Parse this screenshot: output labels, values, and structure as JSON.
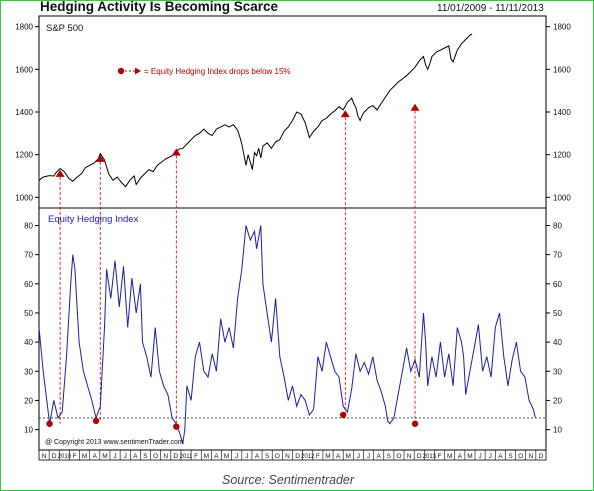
{
  "header": {
    "title": "Hedging Activity Is Becoming Scarce",
    "date_range": "11/01/2009 - 11/11/2013"
  },
  "footer": {
    "source": "Source: Sentimentrader"
  },
  "chart_data": [
    {
      "type": "line",
      "panel": "top",
      "label": "S&P 500",
      "ylim": [
        950,
        1850
      ],
      "yticks": [
        1000,
        1200,
        1400,
        1600,
        1800
      ],
      "grid": false,
      "legend": {
        "text": "= Equity Hedging Index drops below 15%",
        "placement": "top-left",
        "marker_color": "#b00000"
      },
      "line_color": "#000000",
      "series": [
        {
          "values": [
            [
              0,
              1080
            ],
            [
              2,
              1095
            ],
            [
              4,
              1100
            ],
            [
              5,
              1102
            ],
            [
              7,
              1100
            ],
            [
              8,
              1115
            ],
            [
              10,
              1135
            ],
            [
              12,
              1120
            ],
            [
              14,
              1090
            ],
            [
              16,
              1075
            ],
            [
              18,
              1095
            ],
            [
              20,
              1110
            ],
            [
              22,
              1140
            ],
            [
              24,
              1150
            ],
            [
              26,
              1160
            ],
            [
              28,
              1180
            ],
            [
              29,
              1205
            ],
            [
              31,
              1175
            ],
            [
              33,
              1110
            ],
            [
              35,
              1080
            ],
            [
              37,
              1095
            ],
            [
              39,
              1070
            ],
            [
              41,
              1050
            ],
            [
              43,
              1080
            ],
            [
              45,
              1100
            ],
            [
              46,
              1060
            ],
            [
              48,
              1090
            ],
            [
              50,
              1110
            ],
            [
              52,
              1130
            ],
            [
              54,
              1120
            ],
            [
              56,
              1150
            ],
            [
              58,
              1165
            ],
            [
              60,
              1180
            ],
            [
              62,
              1190
            ],
            [
              64,
              1200
            ],
            [
              66,
              1225
            ],
            [
              68,
              1230
            ],
            [
              70,
              1250
            ],
            [
              72,
              1270
            ],
            [
              74,
              1290
            ],
            [
              76,
              1300
            ],
            [
              78,
              1320
            ],
            [
              80,
              1300
            ],
            [
              82,
              1290
            ],
            [
              84,
              1320
            ],
            [
              86,
              1330
            ],
            [
              88,
              1340
            ],
            [
              90,
              1330
            ],
            [
              92,
              1340
            ],
            [
              94,
              1315
            ],
            [
              95,
              1285
            ],
            [
              96,
              1250
            ],
            [
              97,
              1200
            ],
            [
              98,
              1150
            ],
            [
              99,
              1200
            ],
            [
              100,
              1165
            ],
            [
              101,
              1130
            ],
            [
              102,
              1210
            ],
            [
              103,
              1195
            ],
            [
              104,
              1230
            ],
            [
              105,
              1185
            ],
            [
              106,
              1240
            ],
            [
              108,
              1255
            ],
            [
              110,
              1230
            ],
            [
              112,
              1260
            ],
            [
              114,
              1270
            ],
            [
              116,
              1310
            ],
            [
              118,
              1330
            ],
            [
              120,
              1360
            ],
            [
              122,
              1400
            ],
            [
              124,
              1390
            ],
            [
              125,
              1370
            ],
            [
              126,
              1350
            ],
            [
              127,
              1315
            ],
            [
              128,
              1280
            ],
            [
              130,
              1310
            ],
            [
              132,
              1330
            ],
            [
              134,
              1360
            ],
            [
              136,
              1370
            ],
            [
              138,
              1390
            ],
            [
              140,
              1405
            ],
            [
              142,
              1425
            ],
            [
              144,
              1410
            ],
            [
              146,
              1445
            ],
            [
              148,
              1465
            ],
            [
              149,
              1440
            ],
            [
              150,
              1420
            ],
            [
              151,
              1380
            ],
            [
              152,
              1360
            ],
            [
              153,
              1385
            ],
            [
              154,
              1400
            ],
            [
              156,
              1420
            ],
            [
              158,
              1430
            ],
            [
              160,
              1410
            ],
            [
              162,
              1440
            ],
            [
              164,
              1470
            ],
            [
              166,
              1500
            ],
            [
              168,
              1520
            ],
            [
              170,
              1540
            ],
            [
              172,
              1555
            ],
            [
              174,
              1570
            ],
            [
              176,
              1590
            ],
            [
              178,
              1610
            ],
            [
              180,
              1640
            ],
            [
              182,
              1660
            ],
            [
              183,
              1620
            ],
            [
              184,
              1600
            ],
            [
              185,
              1625
            ],
            [
              186,
              1660
            ],
            [
              188,
              1680
            ],
            [
              190,
              1690
            ],
            [
              192,
              1700
            ],
            [
              194,
              1710
            ],
            [
              195,
              1650
            ],
            [
              196,
              1635
            ],
            [
              198,
              1690
            ],
            [
              200,
              1720
            ],
            [
              202,
              1740
            ],
            [
              204,
              1760
            ],
            [
              205,
              1765
            ]
          ]
        }
      ],
      "markers": [
        {
          "x": 10,
          "value": 1110
        },
        {
          "x": 29,
          "value": 1180
        },
        {
          "x": 65,
          "value": 1210
        },
        {
          "x": 145,
          "value": 1390
        },
        {
          "x": 178,
          "value": 1420
        }
      ]
    },
    {
      "type": "line",
      "panel": "bottom",
      "label": "Equity Hedging Index",
      "ylim": [
        3,
        86
      ],
      "yticks": [
        10,
        20,
        30,
        40,
        50,
        60,
        70,
        80
      ],
      "grid": false,
      "reference_line": {
        "value": 14,
        "style": "dashed"
      },
      "line_color": "#1a1fa0",
      "series": [
        {
          "values": [
            [
              0,
              45
            ],
            [
              2,
              30
            ],
            [
              4,
              18
            ],
            [
              5,
              12
            ],
            [
              7,
              20
            ],
            [
              9,
              14
            ],
            [
              11,
              16
            ],
            [
              13,
              35
            ],
            [
              15,
              60
            ],
            [
              16,
              70
            ],
            [
              17,
              65
            ],
            [
              19,
              40
            ],
            [
              21,
              30
            ],
            [
              23,
              25
            ],
            [
              25,
              20
            ],
            [
              27,
              14
            ],
            [
              29,
              18
            ],
            [
              31,
              45
            ],
            [
              32,
              65
            ],
            [
              34,
              55
            ],
            [
              36,
              68
            ],
            [
              38,
              52
            ],
            [
              40,
              66
            ],
            [
              42,
              45
            ],
            [
              44,
              62
            ],
            [
              46,
              50
            ],
            [
              48,
              60
            ],
            [
              49,
              40
            ],
            [
              51,
              35
            ],
            [
              53,
              28
            ],
            [
              55,
              45
            ],
            [
              57,
              30
            ],
            [
              59,
              25
            ],
            [
              61,
              22
            ],
            [
              63,
              14
            ],
            [
              65,
              12
            ],
            [
              67,
              8
            ],
            [
              68,
              5
            ],
            [
              69,
              10
            ],
            [
              70,
              25
            ],
            [
              72,
              20
            ],
            [
              74,
              35
            ],
            [
              76,
              40
            ],
            [
              78,
              30
            ],
            [
              80,
              28
            ],
            [
              82,
              36
            ],
            [
              84,
              30
            ],
            [
              86,
              48
            ],
            [
              88,
              40
            ],
            [
              90,
              45
            ],
            [
              92,
              38
            ],
            [
              94,
              55
            ],
            [
              96,
              65
            ],
            [
              98,
              80
            ],
            [
              100,
              75
            ],
            [
              102,
              78
            ],
            [
              103,
              72
            ],
            [
              105,
              80
            ],
            [
              106,
              60
            ],
            [
              108,
              50
            ],
            [
              110,
              40
            ],
            [
              112,
              55
            ],
            [
              114,
              35
            ],
            [
              116,
              28
            ],
            [
              118,
              20
            ],
            [
              120,
              25
            ],
            [
              122,
              18
            ],
            [
              124,
              22
            ],
            [
              126,
              20
            ],
            [
              128,
              15
            ],
            [
              130,
              17
            ],
            [
              132,
              35
            ],
            [
              134,
              30
            ],
            [
              136,
              40
            ],
            [
              138,
              35
            ],
            [
              140,
              30
            ],
            [
              142,
              28
            ],
            [
              144,
              18
            ],
            [
              146,
              16
            ],
            [
              148,
              24
            ],
            [
              150,
              36
            ],
            [
              152,
              30
            ],
            [
              154,
              33
            ],
            [
              156,
              29
            ],
            [
              158,
              35
            ],
            [
              160,
              27
            ],
            [
              162,
              23
            ],
            [
              164,
              18
            ],
            [
              165,
              13
            ],
            [
              166,
              12
            ],
            [
              168,
              14
            ],
            [
              170,
              22
            ],
            [
              172,
              30
            ],
            [
              174,
              38
            ],
            [
              176,
              30
            ],
            [
              178,
              34
            ],
            [
              180,
              28
            ],
            [
              182,
              50
            ],
            [
              183,
              40
            ],
            [
              184,
              25
            ],
            [
              186,
              35
            ],
            [
              188,
              28
            ],
            [
              190,
              40
            ],
            [
              192,
              28
            ],
            [
              194,
              36
            ],
            [
              196,
              25
            ],
            [
              198,
              45
            ],
            [
              200,
              40
            ],
            [
              201,
              35
            ],
            [
              202,
              22
            ],
            [
              204,
              30
            ],
            [
              206,
              38
            ],
            [
              208,
              46
            ],
            [
              210,
              30
            ],
            [
              212,
              35
            ],
            [
              214,
              28
            ],
            [
              216,
              45
            ],
            [
              218,
              50
            ],
            [
              220,
              35
            ],
            [
              222,
              25
            ],
            [
              224,
              34
            ],
            [
              226,
              40
            ],
            [
              228,
              30
            ],
            [
              230,
              28
            ],
            [
              232,
              20
            ],
            [
              234,
              17
            ],
            [
              235,
              14
            ]
          ]
        }
      ],
      "markers": [
        {
          "x": 5,
          "value": 12
        },
        {
          "x": 27,
          "value": 13
        },
        {
          "x": 65,
          "value": 11
        },
        {
          "x": 144,
          "value": 15
        },
        {
          "x": 178,
          "value": 12
        }
      ],
      "footer_text": "@ Copyright 2013   www.sentimenTrader.com"
    }
  ],
  "x_axis": {
    "ticks": [
      "N",
      "D",
      "2010",
      "F",
      "M",
      "A",
      "M",
      "J",
      "J",
      "A",
      "S",
      "O",
      "N",
      "D",
      "2011",
      "F",
      "M",
      "A",
      "M",
      "J",
      "J",
      "A",
      "S",
      "O",
      "N",
      "D",
      "2012",
      "F",
      "M",
      "A",
      "M",
      "J",
      "J",
      "A",
      "S",
      "O",
      "N",
      "D",
      "2013",
      "F",
      "M",
      "A",
      "M",
      "J",
      "J",
      "A",
      "S",
      "O",
      "N",
      "D"
    ]
  }
}
